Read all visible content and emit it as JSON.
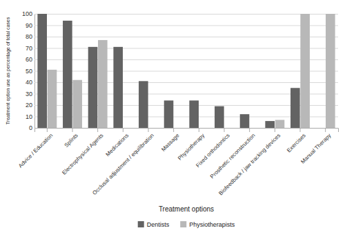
{
  "chart_data": {
    "type": "bar",
    "categories": [
      "Advice / Education",
      "Splints",
      "Electrophysical Agents",
      "Medications",
      "Occlusal adjustment / equilibration",
      "Massage",
      "Physiotherapy",
      "Fixed orthodontics",
      "Prosthetic reconstruction",
      "Biofeedback / jaw tracking devices",
      "Exercises",
      "Manual Therapy"
    ],
    "series": [
      {
        "name": "Dentists",
        "color": "#636363",
        "values": [
          100,
          94,
          71,
          71,
          41,
          24,
          24,
          19,
          12,
          6,
          35,
          0
        ]
      },
      {
        "name": "Physiotherapists",
        "color": "#b8b8b8",
        "values": [
          51,
          42,
          77,
          0,
          0,
          0,
          0,
          0,
          0,
          7,
          100,
          100
        ]
      }
    ],
    "x_label": "Treatment options",
    "y_label": "Treatment option use as percentage of total cases",
    "ylim": [
      0,
      100
    ],
    "yticks": [
      0,
      10,
      20,
      30,
      40,
      50,
      60,
      70,
      80,
      90,
      100
    ],
    "grid": true,
    "legend": "bottom"
  }
}
